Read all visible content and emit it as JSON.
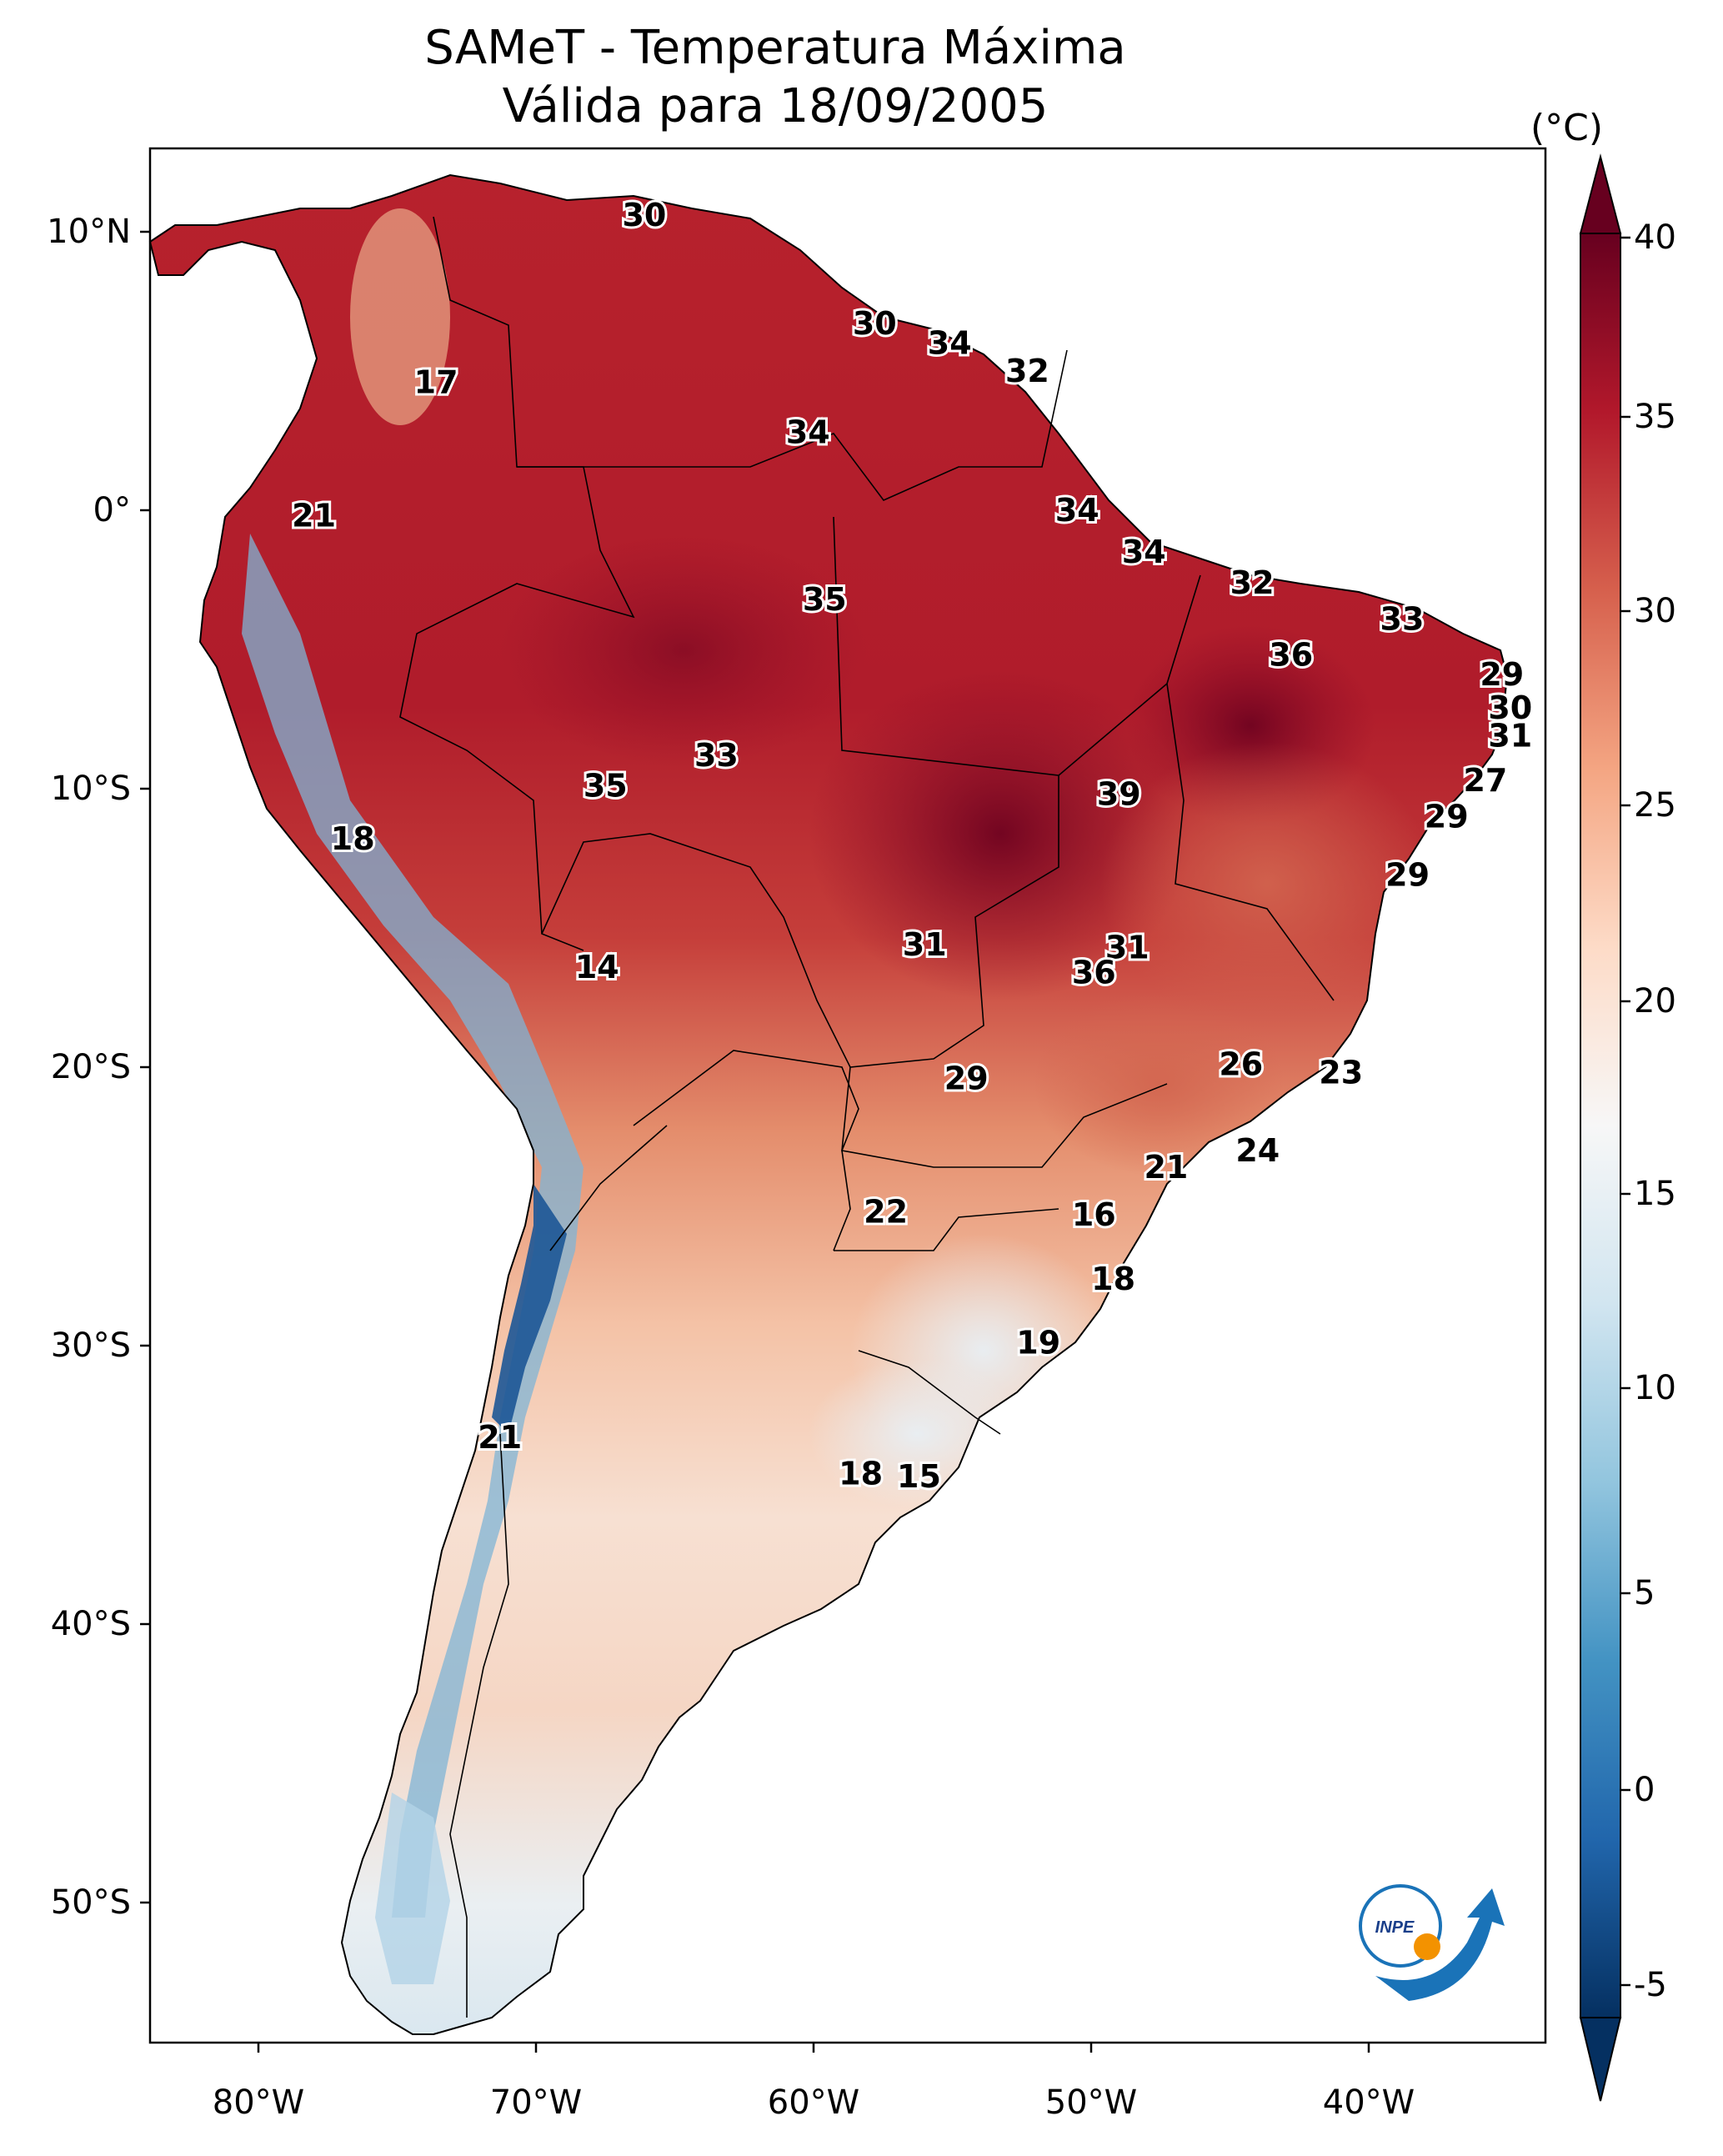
{
  "title": {
    "line1": "SAMeT - Temperatura Máxima",
    "line2": "Válida para 18/09/2005"
  },
  "axes": {
    "lat_ticks": [
      "10°N",
      "0°",
      "10°S",
      "20°S",
      "30°S",
      "40°S",
      "50°S"
    ],
    "lon_ticks": [
      "80°W",
      "70°W",
      "60°W",
      "50°W",
      "40°W"
    ]
  },
  "colorbar": {
    "unit": "(°C)",
    "ticks": [
      "40",
      "35",
      "30",
      "25",
      "20",
      "15",
      "10",
      "5",
      "0",
      "-5"
    ],
    "vmin": -5,
    "vmax": 40,
    "extend": "both",
    "colors": [
      "#053061",
      "#2166ac",
      "#4393c3",
      "#92c5de",
      "#d1e5f0",
      "#f7f7f7",
      "#fddbc7",
      "#f4a582",
      "#d6604d",
      "#b2182b",
      "#67001f"
    ]
  },
  "map_labels": [
    {
      "text": "30",
      "lon": -66.1,
      "lat": 10.6
    },
    {
      "text": "17",
      "lon": -73.6,
      "lat": 4.6
    },
    {
      "text": "30",
      "lon": -57.8,
      "lat": 6.7
    },
    {
      "text": "34",
      "lon": -55.1,
      "lat": 6.0
    },
    {
      "text": "32",
      "lon": -52.3,
      "lat": 5.0
    },
    {
      "text": "34",
      "lon": -60.2,
      "lat": 2.8
    },
    {
      "text": "21",
      "lon": -78.0,
      "lat": -0.2
    },
    {
      "text": "34",
      "lon": -50.5,
      "lat": 0.0
    },
    {
      "text": "34",
      "lon": -48.1,
      "lat": -1.5
    },
    {
      "text": "35",
      "lon": -59.6,
      "lat": -3.2
    },
    {
      "text": "32",
      "lon": -44.2,
      "lat": -2.6
    },
    {
      "text": "33",
      "lon": -38.8,
      "lat": -3.9
    },
    {
      "text": "36",
      "lon": -42.8,
      "lat": -5.2
    },
    {
      "text": "29",
      "lon": -35.2,
      "lat": -5.9
    },
    {
      "text": "30",
      "lon": -34.9,
      "lat": -7.1
    },
    {
      "text": "31",
      "lon": -34.9,
      "lat": -8.1
    },
    {
      "text": "33",
      "lon": -63.5,
      "lat": -8.8
    },
    {
      "text": "35",
      "lon": -67.5,
      "lat": -9.9
    },
    {
      "text": "27",
      "lon": -35.8,
      "lat": -9.7
    },
    {
      "text": "39",
      "lon": -49.0,
      "lat": -10.2
    },
    {
      "text": "29",
      "lon": -37.2,
      "lat": -11.0
    },
    {
      "text": "18",
      "lon": -76.6,
      "lat": -11.8
    },
    {
      "text": "29",
      "lon": -38.6,
      "lat": -13.1
    },
    {
      "text": "31",
      "lon": -56.0,
      "lat": -15.6
    },
    {
      "text": "31",
      "lon": -48.7,
      "lat": -15.7
    },
    {
      "text": "36",
      "lon": -49.9,
      "lat": -16.6
    },
    {
      "text": "14",
      "lon": -67.8,
      "lat": -16.4
    },
    {
      "text": "26",
      "lon": -44.6,
      "lat": -19.9
    },
    {
      "text": "29",
      "lon": -54.5,
      "lat": -20.4
    },
    {
      "text": "23",
      "lon": -41.0,
      "lat": -20.2
    },
    {
      "text": "24",
      "lon": -44.0,
      "lat": -23.0
    },
    {
      "text": "21",
      "lon": -47.3,
      "lat": -23.6
    },
    {
      "text": "22",
      "lon": -57.4,
      "lat": -25.2
    },
    {
      "text": "16",
      "lon": -49.9,
      "lat": -25.3
    },
    {
      "text": "18",
      "lon": -49.2,
      "lat": -27.6
    },
    {
      "text": "19",
      "lon": -51.9,
      "lat": -29.9
    },
    {
      "text": "21",
      "lon": -71.3,
      "lat": -33.3
    },
    {
      "text": "18",
      "lon": -58.3,
      "lat": -34.6
    },
    {
      "text": "15",
      "lon": -56.2,
      "lat": -34.7
    }
  ],
  "logo": {
    "text": "INPE"
  }
}
